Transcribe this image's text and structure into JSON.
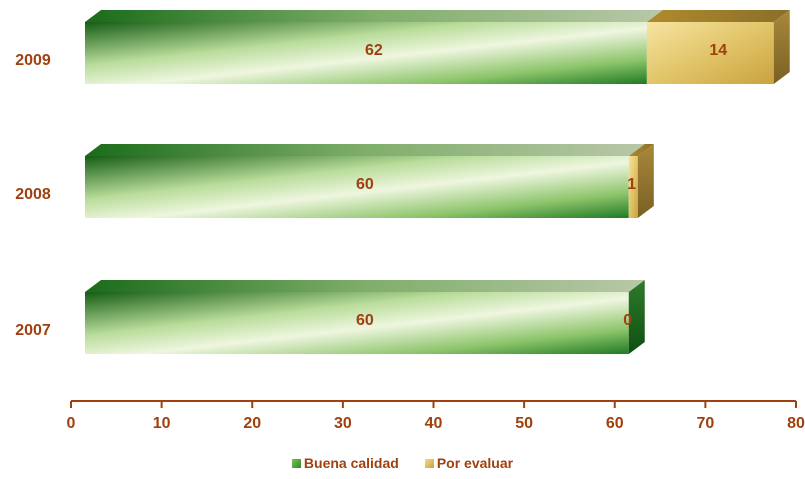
{
  "chart_data": {
    "type": "bar",
    "orientation": "horizontal",
    "stacked": true,
    "categories": [
      "2009",
      "2008",
      "2007"
    ],
    "series": [
      {
        "name": "Buena calidad",
        "values": [
          62,
          60,
          60
        ],
        "color": "#2e8a2e"
      },
      {
        "name": "Por evaluar",
        "values": [
          14,
          1,
          0
        ],
        "color": "#d9bc5a"
      }
    ],
    "xlim": [
      0,
      80
    ],
    "xticks": [
      0,
      10,
      20,
      30,
      40,
      50,
      60,
      70,
      80
    ],
    "title": "",
    "xlabel": "",
    "ylabel": "",
    "legend_position": "bottom",
    "grid": false
  },
  "legend": {
    "items": [
      {
        "label": "Buena calidad"
      },
      {
        "label": "Por evaluar"
      }
    ]
  },
  "colors": {
    "text": "#a0400f",
    "axis": "#a0400f",
    "green_dark": "#155d15",
    "green_light": "#e9f3d8",
    "gold_light": "#f2dc8a",
    "gold_dark": "#c9a23a"
  }
}
